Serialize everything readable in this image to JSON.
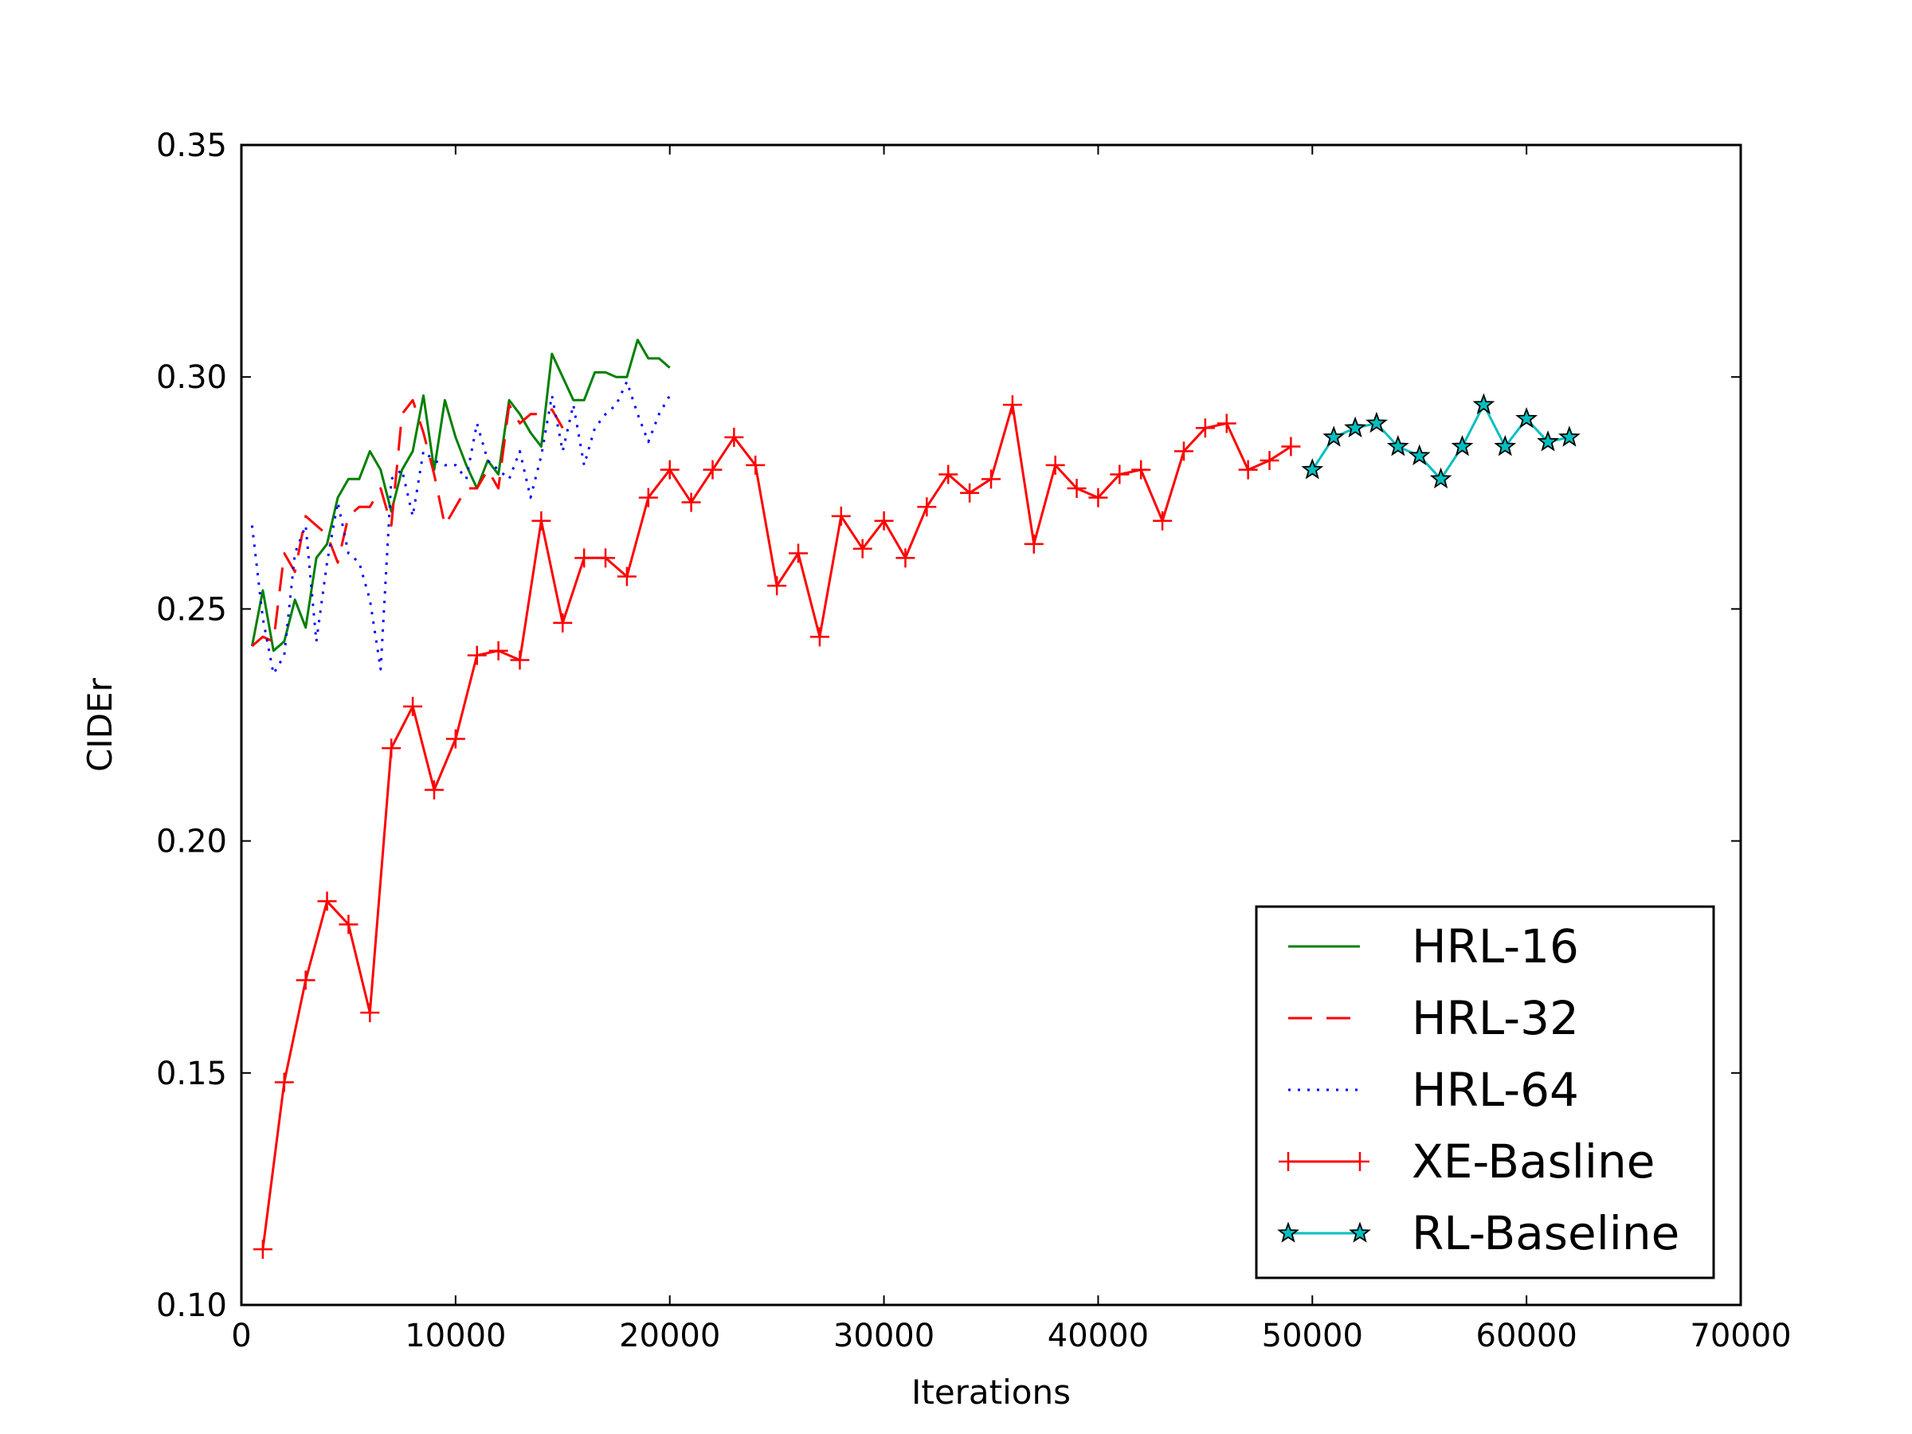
{
  "chart_data": {
    "type": "line",
    "title": "",
    "xlabel": "Iterations",
    "ylabel": "CIDEr",
    "xlim": [
      0,
      70000
    ],
    "ylim": [
      0.1,
      0.35
    ],
    "xticks": [
      0,
      10000,
      20000,
      30000,
      40000,
      50000,
      60000,
      70000
    ],
    "xtick_labels": [
      "0",
      "10000",
      "20000",
      "30000",
      "40000",
      "50000",
      "60000",
      "70000"
    ],
    "yticks": [
      0.1,
      0.15,
      0.2,
      0.25,
      0.3,
      0.35
    ],
    "ytick_labels": [
      "0.10",
      "0.15",
      "0.20",
      "0.25",
      "0.30",
      "0.35"
    ],
    "grid": false,
    "legend_position": "lower-right",
    "series": [
      {
        "name": "HRL-16",
        "color": "#008000",
        "style": "solid",
        "marker": "none",
        "x": [
          500,
          1000,
          1500,
          2000,
          2500,
          3000,
          3500,
          4000,
          4500,
          5000,
          5500,
          6000,
          6500,
          7000,
          7500,
          8000,
          8500,
          9000,
          9500,
          10000,
          10500,
          11000,
          11500,
          12000,
          12500,
          13000,
          13500,
          14000,
          14500,
          15000,
          15500,
          16000,
          16500,
          17000,
          17500,
          18000,
          18500,
          19000,
          19500,
          20000
        ],
        "y": [
          0.242,
          0.254,
          0.241,
          0.243,
          0.252,
          0.246,
          0.261,
          0.264,
          0.274,
          0.278,
          0.278,
          0.284,
          0.28,
          0.271,
          0.28,
          0.284,
          0.296,
          0.28,
          0.295,
          0.287,
          0.281,
          0.276,
          0.282,
          0.279,
          0.295,
          0.292,
          0.288,
          0.285,
          0.305,
          0.3,
          0.295,
          0.295,
          0.301,
          0.301,
          0.3,
          0.3,
          0.308,
          0.304,
          0.304,
          0.302
        ]
      },
      {
        "name": "HRL-32",
        "color": "#ff0000",
        "style": "dashed",
        "marker": "none",
        "x": [
          500,
          1000,
          1500,
          2000,
          2500,
          3000,
          3500,
          4000,
          4500,
          5000,
          5500,
          6000,
          6500,
          7000,
          7500,
          8000,
          8500,
          9000,
          9500,
          10000,
          10500,
          11000,
          11500,
          12000,
          12500,
          13000,
          13500,
          14000,
          14500,
          15000
        ],
        "y": [
          0.242,
          0.244,
          0.243,
          0.262,
          0.258,
          0.27,
          0.268,
          0.266,
          0.26,
          0.27,
          0.272,
          0.272,
          0.276,
          0.268,
          0.292,
          0.295,
          0.288,
          0.279,
          0.268,
          0.272,
          0.276,
          0.276,
          0.28,
          0.276,
          0.294,
          0.29,
          0.292,
          0.292,
          0.293,
          0.289
        ]
      },
      {
        "name": "HRL-64",
        "color": "#0000ff",
        "style": "dotted",
        "marker": "none",
        "x": [
          500,
          1000,
          1500,
          2000,
          2500,
          3000,
          3500,
          4000,
          4500,
          5000,
          5500,
          6000,
          6500,
          7000,
          7500,
          8000,
          8500,
          9000,
          9500,
          10000,
          10500,
          11000,
          11500,
          12000,
          12500,
          13000,
          13500,
          14000,
          14500,
          15000,
          15500,
          16000,
          16500,
          17000,
          17500,
          18000,
          18500,
          19000,
          19500,
          20000
        ],
        "y": [
          0.268,
          0.248,
          0.236,
          0.24,
          0.262,
          0.268,
          0.243,
          0.26,
          0.273,
          0.262,
          0.26,
          0.252,
          0.237,
          0.278,
          0.28,
          0.27,
          0.284,
          0.282,
          0.281,
          0.281,
          0.278,
          0.29,
          0.282,
          0.28,
          0.278,
          0.284,
          0.274,
          0.283,
          0.296,
          0.284,
          0.294,
          0.281,
          0.289,
          0.292,
          0.294,
          0.299,
          0.292,
          0.286,
          0.292,
          0.296
        ]
      },
      {
        "name": "XE-Basline",
        "color": "#ff0000",
        "style": "solid",
        "marker": "plus",
        "x": [
          1000,
          2000,
          3000,
          4000,
          5000,
          6000,
          7000,
          8000,
          9000,
          10000,
          11000,
          12000,
          13000,
          14000,
          15000,
          16000,
          17000,
          18000,
          19000,
          20000,
          21000,
          22000,
          23000,
          24000,
          25000,
          26000,
          27000,
          28000,
          29000,
          30000,
          31000,
          32000,
          33000,
          34000,
          35000,
          36000,
          37000,
          38000,
          39000,
          40000,
          41000,
          42000,
          43000,
          44000,
          45000,
          46000,
          47000,
          48000,
          49000
        ],
        "y": [
          0.112,
          0.148,
          0.17,
          0.187,
          0.182,
          0.163,
          0.22,
          0.229,
          0.211,
          0.222,
          0.24,
          0.241,
          0.239,
          0.269,
          0.247,
          0.261,
          0.261,
          0.257,
          0.274,
          0.28,
          0.273,
          0.28,
          0.287,
          0.281,
          0.255,
          0.262,
          0.244,
          0.27,
          0.263,
          0.269,
          0.261,
          0.272,
          0.279,
          0.275,
          0.278,
          0.294,
          0.264,
          0.281,
          0.276,
          0.274,
          0.279,
          0.28,
          0.269,
          0.284,
          0.289,
          0.29,
          0.28,
          0.282,
          0.285
        ]
      },
      {
        "name": "RL-Baseline",
        "color": "#00bfbf",
        "style": "solid",
        "marker": "star",
        "x": [
          50000,
          51000,
          52000,
          53000,
          54000,
          55000,
          56000,
          57000,
          58000,
          59000,
          60000,
          61000,
          62000
        ],
        "y": [
          0.28,
          0.287,
          0.289,
          0.29,
          0.285,
          0.283,
          0.278,
          0.285,
          0.294,
          0.285,
          0.291,
          0.286,
          0.287
        ]
      }
    ]
  }
}
